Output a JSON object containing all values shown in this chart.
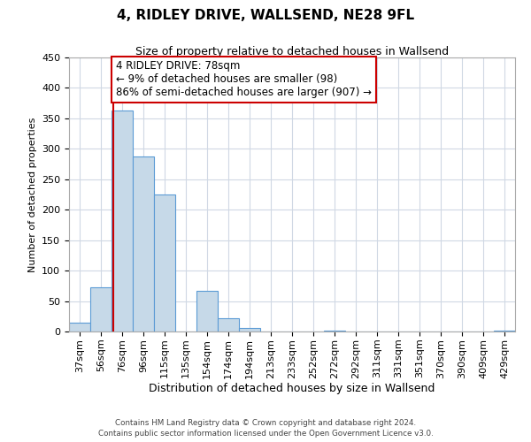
{
  "title": "4, RIDLEY DRIVE, WALLSEND, NE28 9FL",
  "subtitle": "Size of property relative to detached houses in Wallsend",
  "xlabel": "Distribution of detached houses by size in Wallsend",
  "ylabel": "Number of detached properties",
  "bin_labels": [
    "37sqm",
    "56sqm",
    "76sqm",
    "96sqm",
    "115sqm",
    "135sqm",
    "154sqm",
    "174sqm",
    "194sqm",
    "213sqm",
    "233sqm",
    "252sqm",
    "272sqm",
    "292sqm",
    "311sqm",
    "331sqm",
    "351sqm",
    "370sqm",
    "390sqm",
    "409sqm",
    "429sqm"
  ],
  "bar_values": [
    15,
    72,
    363,
    288,
    225,
    0,
    67,
    22,
    6,
    0,
    0,
    0,
    2,
    0,
    0,
    0,
    0,
    0,
    0,
    0,
    2
  ],
  "bar_color": "#c6d9e8",
  "bar_edge_color": "#5b9bd5",
  "property_line_color": "#cc0000",
  "annotation_line1": "4 RIDLEY DRIVE: 78sqm",
  "annotation_line2": "← 9% of detached houses are smaller (98)",
  "annotation_line3": "86% of semi-detached houses are larger (907) →",
  "annotation_box_color": "white",
  "annotation_box_edge_color": "#cc0000",
  "ylim": [
    0,
    450
  ],
  "yticks": [
    0,
    50,
    100,
    150,
    200,
    250,
    300,
    350,
    400,
    450
  ],
  "footer_line1": "Contains HM Land Registry data © Crown copyright and database right 2024.",
  "footer_line2": "Contains public sector information licensed under the Open Government Licence v3.0.",
  "background_color": "#ffffff",
  "grid_color": "#d0d8e4",
  "title_fontsize": 11,
  "subtitle_fontsize": 9,
  "ylabel_fontsize": 8,
  "xlabel_fontsize": 9,
  "annotation_fontsize": 8.5,
  "tick_fontsize": 8
}
